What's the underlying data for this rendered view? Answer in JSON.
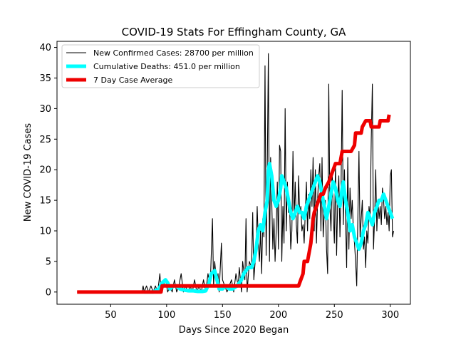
{
  "chart_data": {
    "type": "line",
    "title": "COVID-19 Stats For Effingham County, GA",
    "xlabel": "Days Since 2020 Began",
    "ylabel": "New COVID-19 Cases",
    "xlim": [
      2,
      318
    ],
    "ylim": [
      -2,
      41
    ],
    "xticks": [
      50,
      100,
      150,
      200,
      250,
      300
    ],
    "yticks": [
      0,
      5,
      10,
      15,
      20,
      25,
      30,
      35,
      40
    ],
    "grid": false,
    "legend_position": "top-left",
    "series": [
      {
        "name": "New Confirmed Cases: 28700 per million",
        "color": "#000000",
        "points": [
          [
            20,
            0
          ],
          [
            30,
            0
          ],
          [
            40,
            0
          ],
          [
            50,
            0
          ],
          [
            60,
            0
          ],
          [
            70,
            0
          ],
          [
            78,
            0
          ],
          [
            79,
            1
          ],
          [
            80,
            0
          ],
          [
            82,
            1
          ],
          [
            84,
            0
          ],
          [
            86,
            1
          ],
          [
            88,
            0
          ],
          [
            90,
            1
          ],
          [
            92,
            0
          ],
          [
            94,
            3
          ],
          [
            95,
            0
          ],
          [
            97,
            1
          ],
          [
            99,
            2
          ],
          [
            101,
            0
          ],
          [
            103,
            1
          ],
          [
            105,
            0
          ],
          [
            107,
            2
          ],
          [
            109,
            0
          ],
          [
            111,
            1
          ],
          [
            113,
            3
          ],
          [
            115,
            0
          ],
          [
            117,
            1
          ],
          [
            119,
            0
          ],
          [
            121,
            1
          ],
          [
            123,
            0
          ],
          [
            125,
            2
          ],
          [
            127,
            0
          ],
          [
            129,
            1
          ],
          [
            131,
            0
          ],
          [
            133,
            2
          ],
          [
            135,
            0
          ],
          [
            137,
            3
          ],
          [
            139,
            1
          ],
          [
            141,
            12
          ],
          [
            142,
            1
          ],
          [
            143,
            5
          ],
          [
            145,
            1
          ],
          [
            146,
            3
          ],
          [
            147,
            0
          ],
          [
            149,
            8
          ],
          [
            150,
            2
          ],
          [
            152,
            1
          ],
          [
            154,
            0
          ],
          [
            156,
            1
          ],
          [
            158,
            2
          ],
          [
            160,
            0
          ],
          [
            162,
            3
          ],
          [
            164,
            1
          ],
          [
            165,
            4
          ],
          [
            166,
            2
          ],
          [
            167,
            0
          ],
          [
            168,
            5
          ],
          [
            170,
            2
          ],
          [
            171,
            12
          ],
          [
            172,
            0
          ],
          [
            174,
            5
          ],
          [
            176,
            4
          ],
          [
            177,
            13
          ],
          [
            178,
            2
          ],
          [
            180,
            7
          ],
          [
            181,
            14
          ],
          [
            182,
            8
          ],
          [
            183,
            5
          ],
          [
            184,
            10
          ],
          [
            185,
            3
          ],
          [
            186,
            12
          ],
          [
            187,
            9
          ],
          [
            188,
            37
          ],
          [
            189,
            6
          ],
          [
            190,
            20
          ],
          [
            191,
            39
          ],
          [
            192,
            5
          ],
          [
            193,
            22
          ],
          [
            194,
            15
          ],
          [
            195,
            7
          ],
          [
            196,
            12
          ],
          [
            197,
            5
          ],
          [
            198,
            10
          ],
          [
            199,
            18
          ],
          [
            200,
            7
          ],
          [
            201,
            24
          ],
          [
            202,
            23
          ],
          [
            203,
            5
          ],
          [
            204,
            14
          ],
          [
            205,
            8
          ],
          [
            206,
            30
          ],
          [
            207,
            10
          ],
          [
            208,
            18
          ],
          [
            209,
            13
          ],
          [
            210,
            14
          ],
          [
            211,
            7
          ],
          [
            212,
            10
          ],
          [
            213,
            23
          ],
          [
            214,
            12
          ],
          [
            215,
            18
          ],
          [
            216,
            11
          ],
          [
            217,
            8
          ],
          [
            218,
            19
          ],
          [
            219,
            13
          ],
          [
            220,
            14
          ],
          [
            221,
            10
          ],
          [
            222,
            11
          ],
          [
            223,
            8
          ],
          [
            224,
            13
          ],
          [
            225,
            18
          ],
          [
            226,
            10
          ],
          [
            227,
            16
          ],
          [
            228,
            12
          ],
          [
            229,
            20
          ],
          [
            230,
            14
          ],
          [
            231,
            22
          ],
          [
            232,
            10
          ],
          [
            233,
            20
          ],
          [
            234,
            8
          ],
          [
            235,
            15
          ],
          [
            236,
            19
          ],
          [
            237,
            21
          ],
          [
            238,
            10
          ],
          [
            239,
            22
          ],
          [
            240,
            9
          ],
          [
            241,
            13
          ],
          [
            242,
            15
          ],
          [
            243,
            7
          ],
          [
            244,
            3
          ],
          [
            245,
            34
          ],
          [
            246,
            14
          ],
          [
            247,
            10
          ],
          [
            248,
            20
          ],
          [
            249,
            13
          ],
          [
            250,
            8
          ],
          [
            251,
            21
          ],
          [
            252,
            6
          ],
          [
            253,
            15
          ],
          [
            254,
            19
          ],
          [
            255,
            9
          ],
          [
            256,
            17
          ],
          [
            257,
            33
          ],
          [
            258,
            11
          ],
          [
            259,
            20
          ],
          [
            260,
            12
          ],
          [
            261,
            4
          ],
          [
            262,
            22
          ],
          [
            263,
            7
          ],
          [
            264,
            17
          ],
          [
            265,
            12
          ],
          [
            266,
            15
          ],
          [
            267,
            10
          ],
          [
            268,
            8
          ],
          [
            269,
            5
          ],
          [
            270,
            1
          ],
          [
            271,
            12
          ],
          [
            272,
            23
          ],
          [
            273,
            9
          ],
          [
            274,
            12
          ],
          [
            275,
            15
          ],
          [
            276,
            7
          ],
          [
            277,
            9
          ],
          [
            278,
            4
          ],
          [
            279,
            10
          ],
          [
            280,
            8
          ],
          [
            281,
            14
          ],
          [
            282,
            12
          ],
          [
            283,
            25
          ],
          [
            284,
            34
          ],
          [
            285,
            7
          ],
          [
            286,
            12
          ],
          [
            287,
            20
          ],
          [
            288,
            10
          ],
          [
            289,
            15
          ],
          [
            290,
            12
          ],
          [
            291,
            14
          ],
          [
            292,
            11
          ],
          [
            293,
            17
          ],
          [
            294,
            15
          ],
          [
            295,
            12
          ],
          [
            296,
            14
          ],
          [
            297,
            11
          ],
          [
            298,
            13
          ],
          [
            299,
            10
          ],
          [
            300,
            19
          ],
          [
            301,
            20
          ],
          [
            302,
            9
          ],
          [
            303,
            10
          ]
        ]
      },
      {
        "name": "Cumulative Deaths: 451.0 per million",
        "color": "#00ffff",
        "points": [
          [
            80,
            0
          ],
          [
            88,
            0
          ],
          [
            93,
            0.5
          ],
          [
            96,
            1.5
          ],
          [
            99,
            2
          ],
          [
            101,
            1.5
          ],
          [
            103,
            0.5
          ],
          [
            106,
            1
          ],
          [
            109,
            1
          ],
          [
            112,
            0.5
          ],
          [
            116,
            0.3
          ],
          [
            120,
            0.2
          ],
          [
            124,
            0.2
          ],
          [
            128,
            0.1
          ],
          [
            132,
            0.1
          ],
          [
            135,
            0.2
          ],
          [
            138,
            1.5
          ],
          [
            140,
            3
          ],
          [
            143,
            3.5
          ],
          [
            145,
            2
          ],
          [
            147,
            0.5
          ],
          [
            150,
            0.5
          ],
          [
            153,
            1
          ],
          [
            156,
            0.5
          ],
          [
            159,
            0.5
          ],
          [
            163,
            1
          ],
          [
            167,
            2
          ],
          [
            169,
            3
          ],
          [
            171,
            3.5
          ],
          [
            173,
            4
          ],
          [
            176,
            4
          ],
          [
            178,
            5
          ],
          [
            180,
            7
          ],
          [
            182,
            10
          ],
          [
            184,
            11
          ],
          [
            186,
            10
          ],
          [
            188,
            13
          ],
          [
            190,
            15
          ],
          [
            191,
            20
          ],
          [
            192,
            21
          ],
          [
            194,
            19
          ],
          [
            196,
            15
          ],
          [
            198,
            14
          ],
          [
            200,
            15
          ],
          [
            202,
            17
          ],
          [
            203,
            19
          ],
          [
            205,
            18
          ],
          [
            207,
            17
          ],
          [
            209,
            15
          ],
          [
            211,
            13
          ],
          [
            213,
            12
          ],
          [
            215,
            13
          ],
          [
            217,
            14
          ],
          [
            219,
            13
          ],
          [
            221,
            13
          ],
          [
            223,
            12
          ],
          [
            225,
            14
          ],
          [
            227,
            15
          ],
          [
            229,
            16
          ],
          [
            231,
            17
          ],
          [
            233,
            18
          ],
          [
            235,
            19
          ],
          [
            237,
            18
          ],
          [
            239,
            16
          ],
          [
            241,
            14
          ],
          [
            243,
            12
          ],
          [
            245,
            14
          ],
          [
            247,
            16
          ],
          [
            249,
            18
          ],
          [
            251,
            17
          ],
          [
            253,
            15
          ],
          [
            255,
            14
          ],
          [
            257,
            17
          ],
          [
            258,
            18
          ],
          [
            260,
            15
          ],
          [
            262,
            13
          ],
          [
            264,
            10
          ],
          [
            266,
            11
          ],
          [
            268,
            9
          ],
          [
            270,
            8
          ],
          [
            272,
            7
          ],
          [
            274,
            8
          ],
          [
            276,
            10
          ],
          [
            278,
            11
          ],
          [
            280,
            13
          ],
          [
            282,
            12
          ],
          [
            284,
            11
          ],
          [
            286,
            13
          ],
          [
            288,
            14
          ],
          [
            290,
            15
          ],
          [
            292,
            15
          ],
          [
            294,
            16
          ],
          [
            296,
            15
          ],
          [
            298,
            14
          ],
          [
            300,
            13
          ],
          [
            302,
            12
          ]
        ]
      },
      {
        "name": "7 Day Case Average",
        "color": "#ee0000",
        "points": [
          [
            20,
            0
          ],
          [
            60,
            0
          ],
          [
            90,
            0
          ],
          [
            95,
            0
          ],
          [
            96,
            1
          ],
          [
            120,
            1
          ],
          [
            160,
            1
          ],
          [
            200,
            1
          ],
          [
            215,
            1
          ],
          [
            218,
            1
          ],
          [
            220,
            2
          ],
          [
            222,
            3
          ],
          [
            223,
            5
          ],
          [
            226,
            5
          ],
          [
            227,
            6
          ],
          [
            229,
            8
          ],
          [
            230,
            10
          ],
          [
            231,
            12
          ],
          [
            232,
            13
          ],
          [
            234,
            14
          ],
          [
            236,
            15
          ],
          [
            238,
            16
          ],
          [
            240,
            16
          ],
          [
            242,
            17
          ],
          [
            245,
            18
          ],
          [
            247,
            19
          ],
          [
            249,
            20
          ],
          [
            251,
            21
          ],
          [
            255,
            21
          ],
          [
            256,
            22
          ],
          [
            257,
            23
          ],
          [
            265,
            23
          ],
          [
            268,
            24
          ],
          [
            269,
            26
          ],
          [
            274,
            26
          ],
          [
            275,
            27
          ],
          [
            278,
            28
          ],
          [
            282,
            28
          ],
          [
            283,
            27
          ],
          [
            290,
            27
          ],
          [
            291,
            28
          ],
          [
            298,
            28
          ],
          [
            299,
            29
          ]
        ]
      }
    ]
  }
}
